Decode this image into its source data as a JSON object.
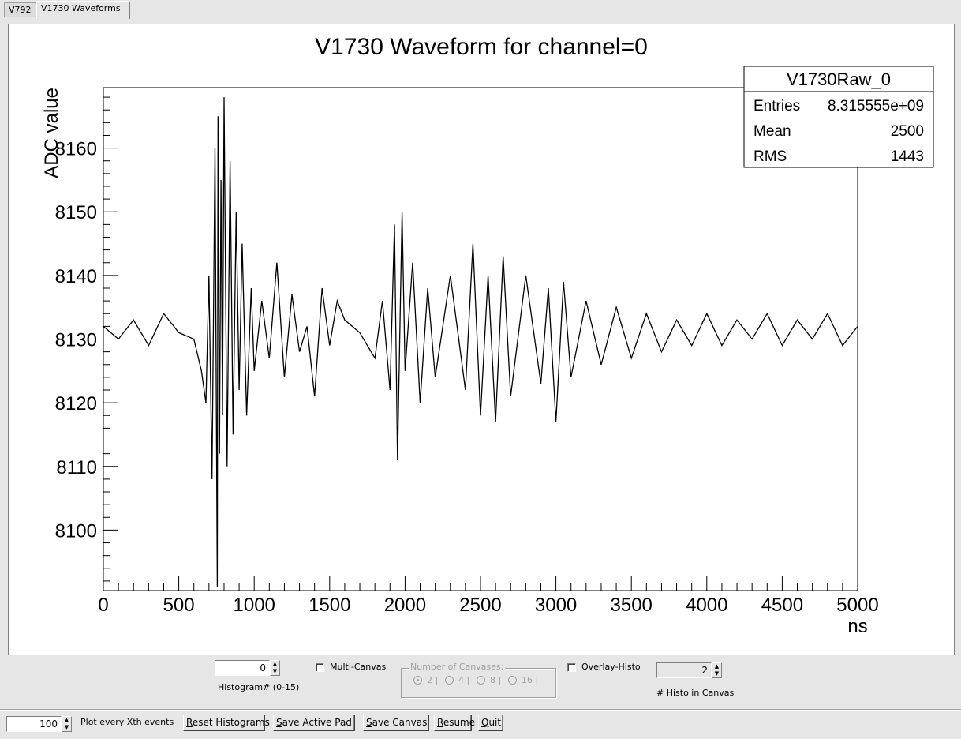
{
  "tabs": [
    {
      "label": "V792",
      "active": false
    },
    {
      "label": "V1730 Waveforms",
      "active": true
    }
  ],
  "chart_data": {
    "type": "line",
    "title": "V1730 Waveform for channel=0",
    "xlabel": "ns",
    "ylabel": "ADC value",
    "xlim": [
      0,
      5000
    ],
    "ylim": [
      8090.5,
      8169.5
    ],
    "x_ticks": [
      0,
      500,
      1000,
      1500,
      2000,
      2500,
      3000,
      3500,
      4000,
      4500,
      5000
    ],
    "y_ticks": [
      8100,
      8110,
      8120,
      8130,
      8140,
      8150,
      8160
    ],
    "grid": false,
    "line_color": "#000000",
    "stats": {
      "name": "V1730Raw_0",
      "rows": [
        {
          "label": "Entries",
          "value": "8.315555e+09"
        },
        {
          "label": "Mean",
          "value": "2500"
        },
        {
          "label": "RMS",
          "value": "1443"
        }
      ]
    },
    "series": [
      {
        "x": [
          0,
          100,
          200,
          300,
          400,
          500,
          600,
          650,
          680,
          700,
          720,
          740,
          755,
          760,
          770,
          780,
          790,
          800,
          820,
          840,
          860,
          880,
          900,
          920,
          950,
          980,
          1000,
          1050,
          1100,
          1150,
          1200,
          1250,
          1300,
          1350,
          1400,
          1450,
          1500,
          1550,
          1600,
          1700,
          1800,
          1850,
          1900,
          1930,
          1950,
          1980,
          2000,
          2050,
          2100,
          2150,
          2200,
          2300,
          2400,
          2450,
          2500,
          2550,
          2600,
          2650,
          2700,
          2800,
          2900,
          2950,
          3000,
          3050,
          3100,
          3200,
          3300,
          3400,
          3500,
          3600,
          3700,
          3800,
          3900,
          4000,
          4100,
          4200,
          4300,
          4400,
          4500,
          4600,
          4700,
          4800,
          4900,
          5000
        ],
        "y": [
          8132,
          8130,
          8133,
          8129,
          8134,
          8131,
          8130,
          8125,
          8120,
          8140,
          8108,
          8160,
          8091,
          8165,
          8112,
          8155,
          8118,
          8168,
          8110,
          8158,
          8115,
          8150,
          8122,
          8145,
          8118,
          8138,
          8125,
          8136,
          8127,
          8142,
          8124,
          8137,
          8128,
          8132,
          8121,
          8138,
          8129,
          8136,
          8133,
          8131,
          8127,
          8136,
          8122,
          8148,
          8111,
          8150,
          8125,
          8142,
          8120,
          8138,
          8124,
          8140,
          8122,
          8145,
          8118,
          8140,
          8117,
          8143,
          8121,
          8140,
          8123,
          8138,
          8117,
          8139,
          8124,
          8136,
          8126,
          8135,
          8127,
          8134,
          8128,
          8133,
          8129,
          8134,
          8129,
          8133,
          8130,
          8134,
          8129,
          8133,
          8130,
          8134,
          8129,
          8132
        ]
      }
    ]
  },
  "controls": {
    "histogram_value": "0",
    "histogram_label": "Histogram# (0-15)",
    "multi_canvas_label": "Multi-Canvas",
    "num_canvases_title": "Number of Canvases:",
    "canvas_options": [
      "2",
      "4",
      "8",
      "16"
    ],
    "overlay_label": "Overlay-Histo",
    "histo_in_canvas_value": "2",
    "histo_in_canvas_label": "# Histo in Canvas",
    "plot_every_value": "100",
    "plot_every_label": "Plot every Xth events",
    "buttons": {
      "reset": {
        "ul": "R",
        "rest": "eset Histograms"
      },
      "save_pad": {
        "ul": "S",
        "rest": "ave Active Pad"
      },
      "save_canvas": {
        "ul": "S",
        "rest": "ave Canvas"
      },
      "resume": {
        "ul": "R",
        "rest": "esume"
      },
      "quit": {
        "ul": "Q",
        "rest": "uit"
      }
    }
  }
}
